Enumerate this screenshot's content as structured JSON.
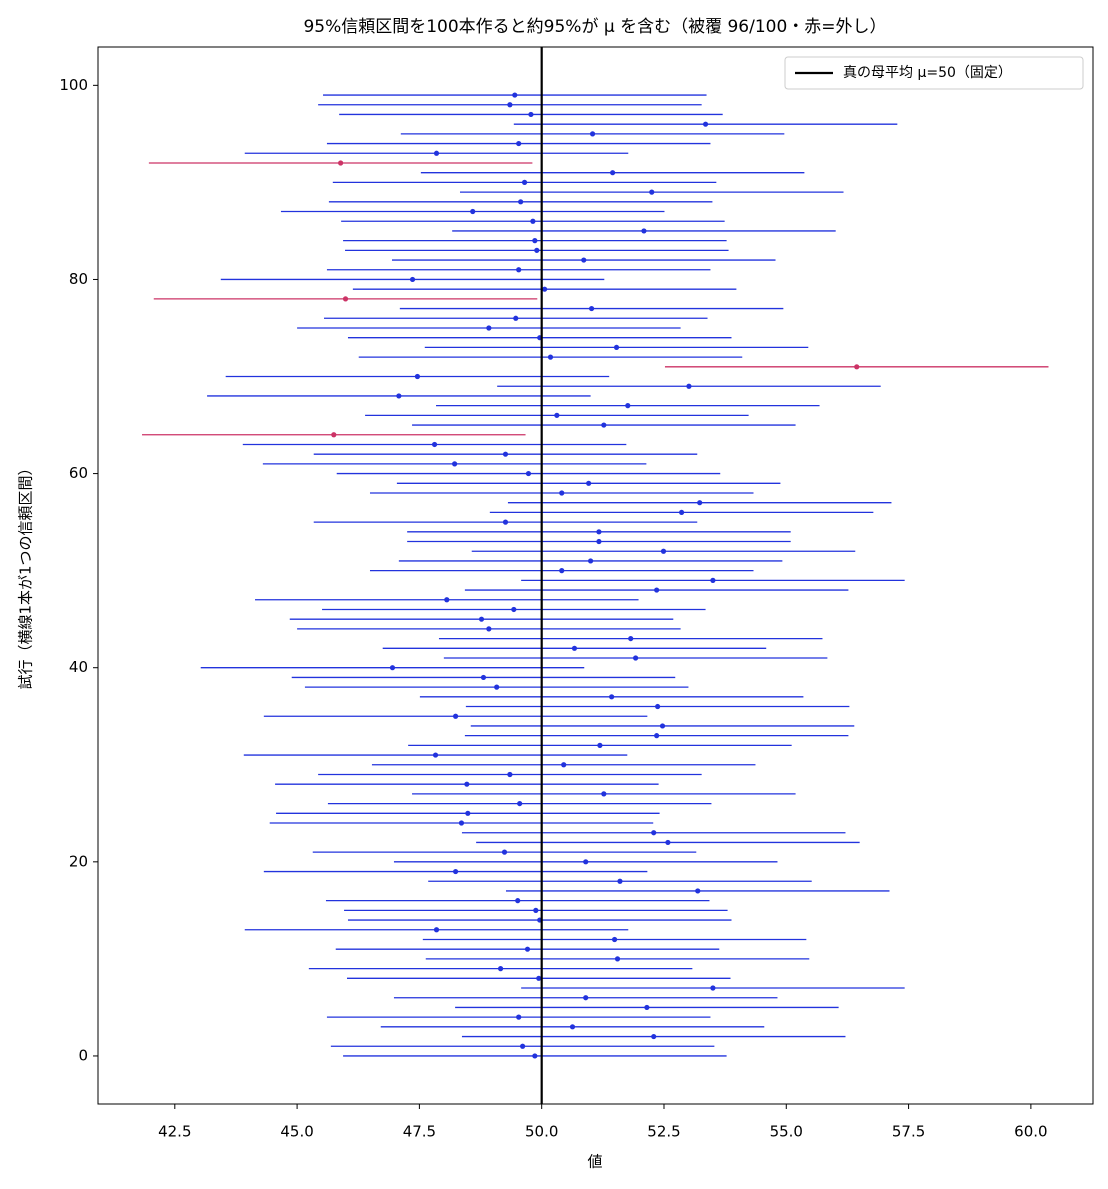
{
  "chart_data": {
    "type": "interval",
    "title": "95%信頼区間を100本作ると約95%が μ を含む（被覆 96/100・赤=外し）",
    "xlabel": "値",
    "ylabel": "試行（横線1本が1つの信頼区間）",
    "values": [
      49.86,
      49.61,
      52.29,
      50.63,
      49.53,
      52.15,
      50.9,
      53.5,
      49.94,
      49.16,
      51.55,
      49.71,
      51.49,
      47.85,
      49.96,
      49.88,
      49.51,
      53.19,
      51.6,
      48.24,
      50.9,
      49.24,
      52.58,
      52.29,
      48.36,
      48.49,
      49.55,
      51.27,
      48.47,
      49.35,
      50.45,
      47.83,
      51.19,
      52.35,
      52.47,
      48.24,
      52.37,
      51.43,
      49.08,
      48.81,
      46.95,
      51.92,
      50.67,
      51.82,
      48.92,
      48.77,
      49.43,
      48.06,
      52.35,
      53.5,
      50.41,
      51.0,
      52.49,
      51.17,
      51.17,
      49.26,
      52.86,
      53.23,
      50.41,
      50.96,
      49.73,
      48.22,
      49.26,
      47.81,
      45.75,
      51.27,
      50.31,
      51.76,
      47.08,
      53.01,
      47.46,
      56.44,
      50.18,
      51.53,
      49.96,
      48.92,
      49.47,
      51.02,
      45.99,
      50.06,
      47.36,
      49.53,
      50.86,
      49.9,
      49.86,
      52.09,
      49.82,
      48.59,
      49.57,
      52.25,
      49.65,
      51.45,
      45.89,
      47.85,
      49.53,
      51.04,
      53.35,
      49.78,
      49.35,
      49.45
    ],
    "error": 3.92,
    "color": "#2233dd",
    "miss_color": "#cc3366",
    "reference": 50,
    "reference_name": "真の母平均 μ=50（固定）",
    "reference_color": "#000000",
    "legend": "upper right",
    "xlim": [
      40.93,
      61.27
    ],
    "xticks": [
      42.5,
      {
        "value": 45,
        "label": "45.0"
      },
      47.5,
      {
        "value": 50,
        "label": "50.0"
      },
      52.5,
      {
        "value": 55,
        "label": "55.0"
      },
      57.5,
      {
        "value": 60,
        "label": "60.0"
      }
    ],
    "ylim": [
      -4.95,
      103.95
    ],
    "yticks": [
      0,
      20,
      40,
      60,
      80,
      100
    ]
  }
}
